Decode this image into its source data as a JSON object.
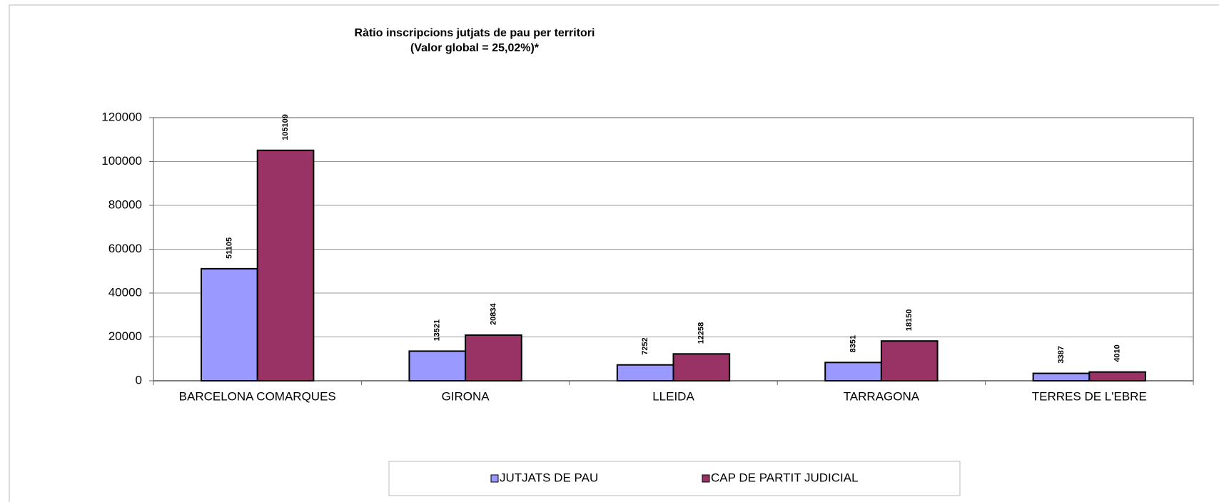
{
  "chart_data": {
    "type": "bar",
    "title": "Ràtio inscripcions jutjats de pau per territori",
    "subtitle": "(Valor global = 25,02%)*",
    "categories": [
      "BARCELONA COMARQUES",
      "GIRONA",
      "LLEIDA",
      "TARRAGONA",
      "TERRES DE L'EBRE"
    ],
    "series": [
      {
        "name": "JUTJATS DE PAU",
        "color": "#9999ff",
        "values": [
          51105,
          13521,
          7252,
          8351,
          3387
        ]
      },
      {
        "name": "CAP DE PARTIT JUDICIAL",
        "color": "#993366",
        "values": [
          105109,
          20834,
          12258,
          18150,
          4010
        ]
      }
    ],
    "ylim": [
      0,
      120000
    ],
    "yticks": [
      0,
      20000,
      40000,
      60000,
      80000,
      100000,
      120000
    ],
    "grid": true,
    "legend": "bottom"
  }
}
